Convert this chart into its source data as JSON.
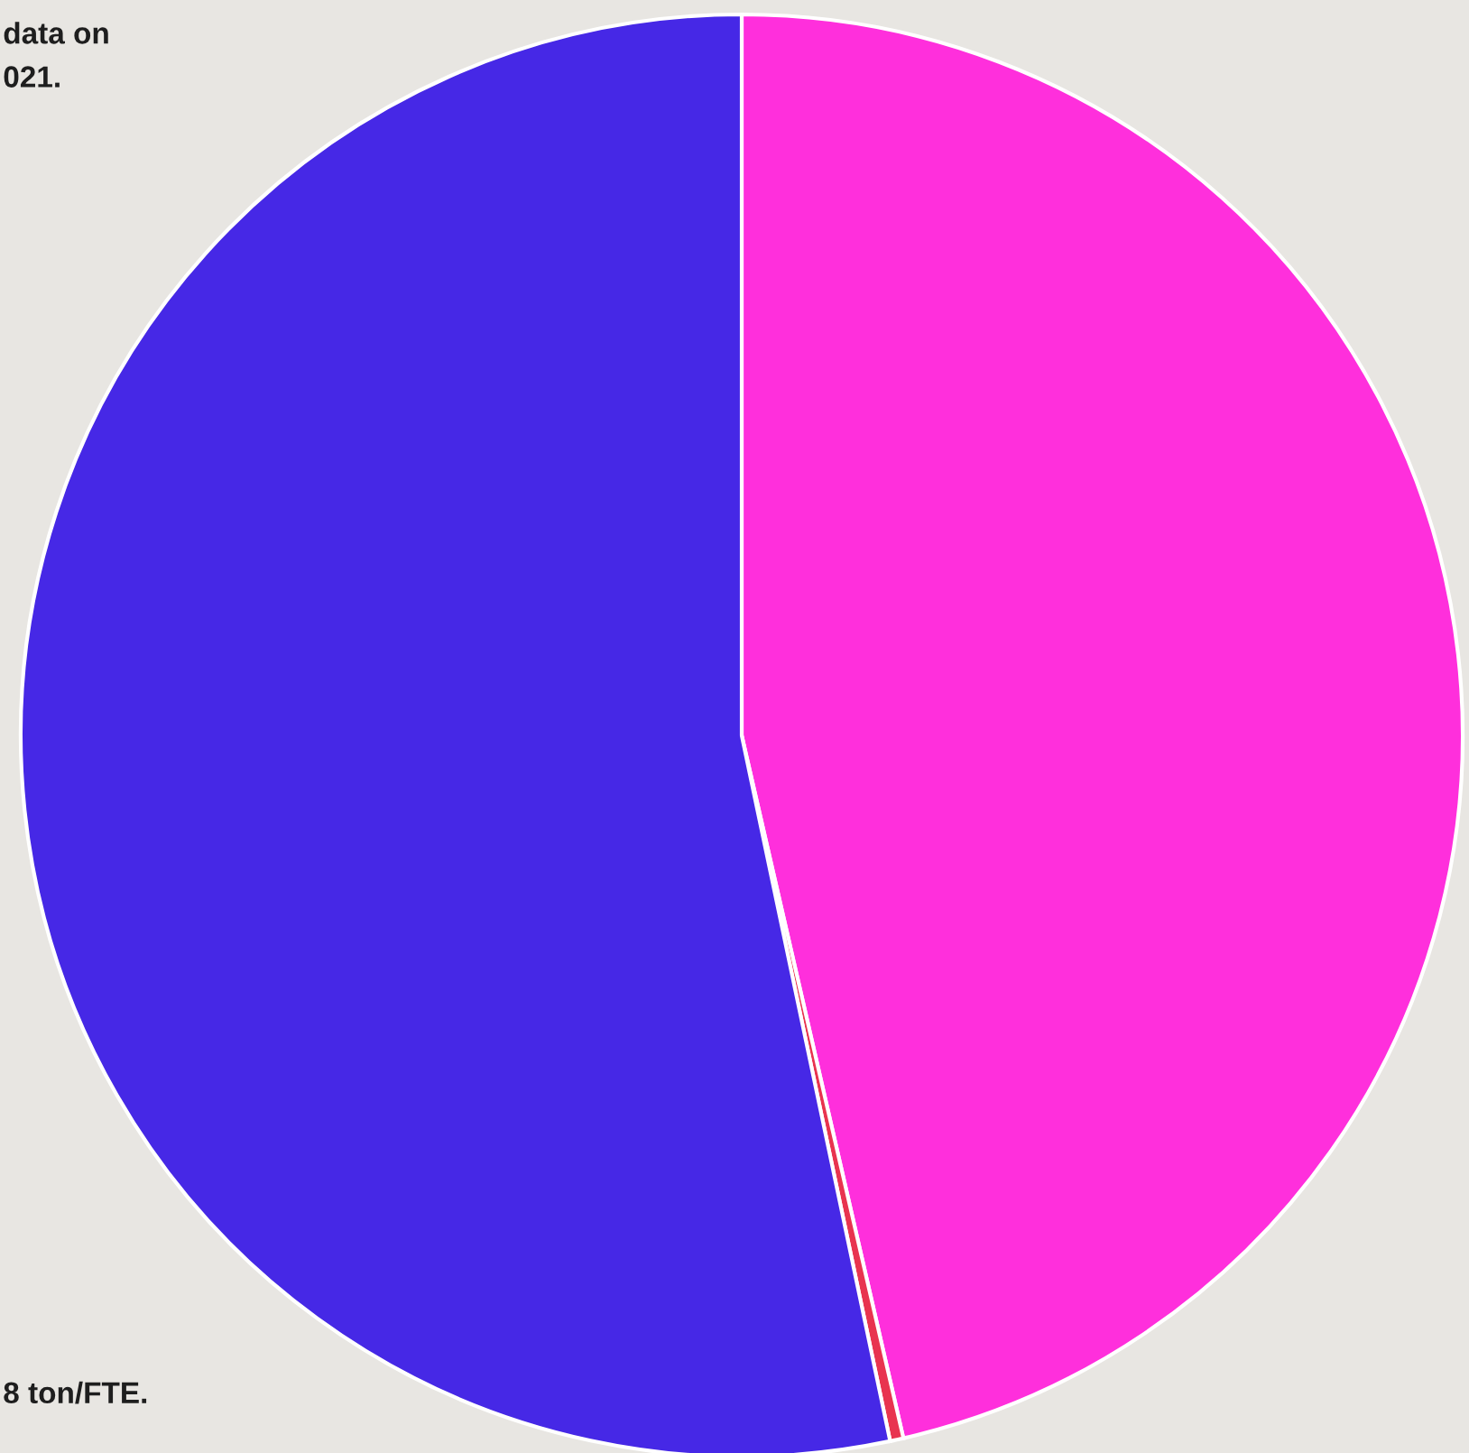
{
  "chart_data": {
    "type": "pie",
    "categories": [
      null,
      null,
      null
    ],
    "values": [
      46.4,
      0.3,
      53.3
    ],
    "colors": [
      "#ff2fdc",
      "#e8344f",
      "#4628e6"
    ],
    "annotations": [
      "data on",
      "021.",
      "8 ton/FTE."
    ]
  }
}
